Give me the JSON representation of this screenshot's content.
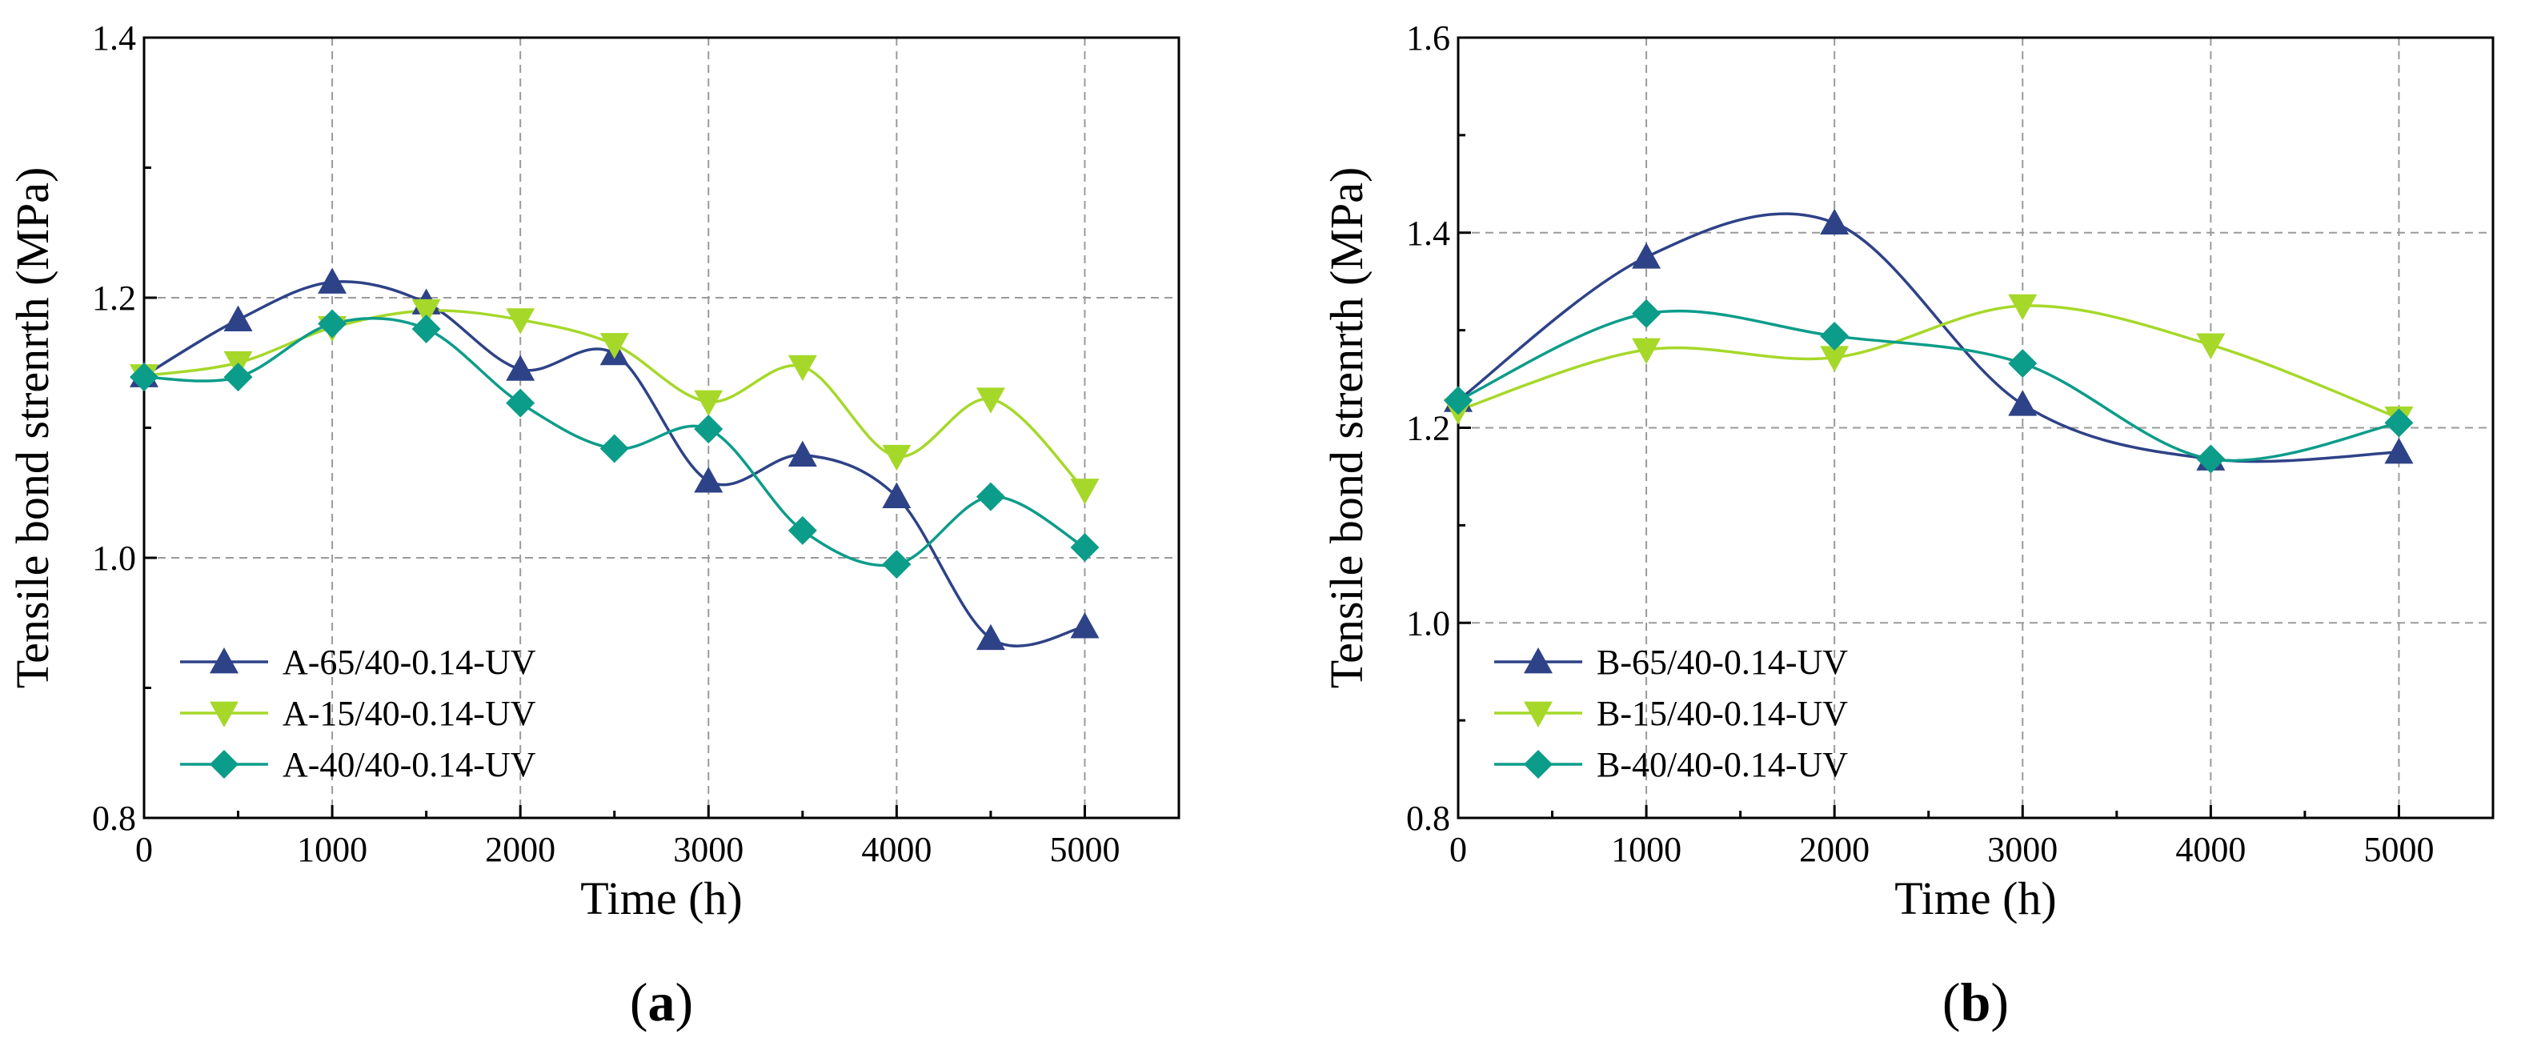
{
  "chart_data": [
    {
      "type": "line",
      "panel_label": "a",
      "title": "",
      "xlabel": "Time (h)",
      "ylabel": "Tensile bond strenrth (MPa)",
      "xlim": [
        0,
        5500
      ],
      "ylim": [
        0.8,
        1.4
      ],
      "xticks": [
        0,
        1000,
        2000,
        3000,
        4000,
        5000
      ],
      "xtick_labels": [
        "0",
        "1000",
        "2000",
        "3000",
        "4000",
        "5000"
      ],
      "yticks": [
        0.8,
        1.0,
        1.2,
        1.4
      ],
      "ytick_labels": [
        "0.8",
        "1.0",
        "1.2",
        "1.4"
      ],
      "grid": true,
      "legend_position": "bottom-left",
      "series": [
        {
          "name": "A-65/40-0.14-UV",
          "color": "#2e4287",
          "marker": "triangle-up",
          "x": [
            0,
            500,
            1000,
            1500,
            2000,
            2500,
            3000,
            3500,
            4000,
            4500,
            5000
          ],
          "values": [
            1.14,
            1.183,
            1.212,
            1.196,
            1.145,
            1.157,
            1.059,
            1.079,
            1.047,
            0.938,
            0.947
          ]
        },
        {
          "name": "A-15/40-0.14-UV",
          "color": "#a6d82a",
          "marker": "triangle-down",
          "x": [
            0,
            500,
            1000,
            1500,
            2000,
            2500,
            3000,
            3500,
            4000,
            4500,
            5000
          ],
          "values": [
            1.14,
            1.15,
            1.177,
            1.19,
            1.183,
            1.164,
            1.12,
            1.147,
            1.078,
            1.122,
            1.052
          ]
        },
        {
          "name": "A-40/40-0.14-UV",
          "color": "#0c9c8a",
          "marker": "diamond",
          "x": [
            0,
            500,
            1000,
            1500,
            2000,
            2500,
            3000,
            3500,
            4000,
            4500,
            5000
          ],
          "values": [
            1.139,
            1.139,
            1.18,
            1.176,
            1.119,
            1.084,
            1.099,
            1.021,
            0.995,
            1.047,
            1.008
          ]
        }
      ]
    },
    {
      "type": "line",
      "panel_label": "b",
      "title": "",
      "xlabel": "Time (h)",
      "ylabel": "Tensile bond strenrth (MPa)",
      "xlim": [
        0,
        5500
      ],
      "ylim": [
        0.8,
        1.6
      ],
      "xticks": [
        0,
        1000,
        2000,
        3000,
        4000,
        5000
      ],
      "xtick_labels": [
        "0",
        "1000",
        "2000",
        "3000",
        "4000",
        "5000"
      ],
      "yticks": [
        0.8,
        1.0,
        1.2,
        1.4,
        1.6
      ],
      "ytick_labels": [
        "0.8",
        "1.0",
        "1.2",
        "1.4",
        "1.6"
      ],
      "grid": true,
      "legend_position": "bottom-left",
      "series": [
        {
          "name": "B-65/40-0.14-UV",
          "color": "#2e4287",
          "marker": "triangle-up",
          "x": [
            0,
            1000,
            2000,
            3000,
            4000,
            5000
          ],
          "values": [
            1.228,
            1.375,
            1.41,
            1.224,
            1.168,
            1.175
          ]
        },
        {
          "name": "B-15/40-0.14-UV",
          "color": "#a6d82a",
          "marker": "triangle-down",
          "x": [
            0,
            1000,
            2000,
            3000,
            4000,
            5000
          ],
          "values": [
            1.218,
            1.28,
            1.272,
            1.325,
            1.285,
            1.21
          ]
        },
        {
          "name": "B-40/40-0.14-UV",
          "color": "#0c9c8a",
          "marker": "diamond",
          "x": [
            0,
            1000,
            2000,
            3000,
            4000,
            5000
          ],
          "values": [
            1.228,
            1.317,
            1.294,
            1.266,
            1.168,
            1.205
          ]
        }
      ]
    }
  ]
}
